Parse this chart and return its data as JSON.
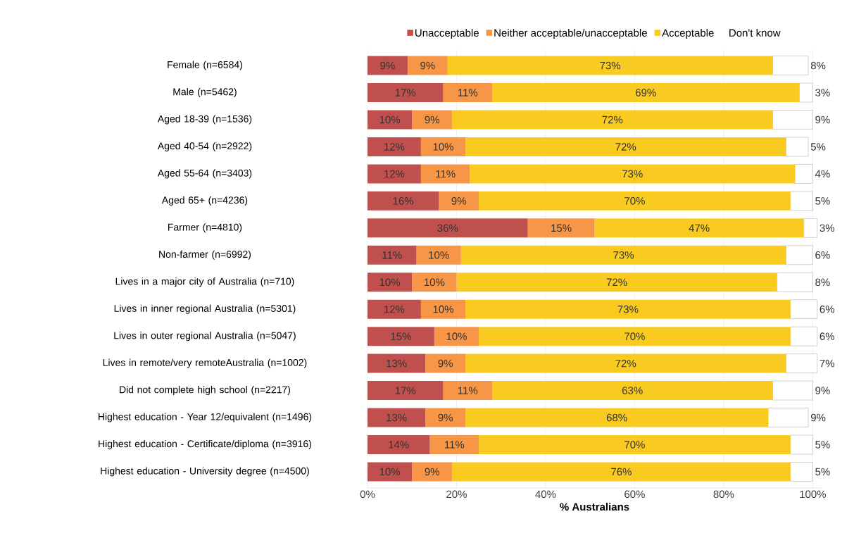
{
  "chart_data": {
    "type": "bar",
    "orientation": "horizontal",
    "stacked": true,
    "xlabel": "% Australians",
    "categories": [
      "Female (n=6584)",
      "Male (n=5462)",
      "Aged 18-39 (n=1536)",
      "Aged 40-54 (n=2922)",
      "Aged 55-64 (n=3403)",
      "Aged 65+ (n=4236)",
      "Farmer (n=4810)",
      "Non-farmer (n=6992)",
      "Lives in a major city of Australia (n=710)",
      "Lives in inner regional Australia (n=5301)",
      "Lives in outer regional Australia (n=5047)",
      "Lives in remote/very remoteAustralia (n=1002)",
      "Did not complete high school (n=2217)",
      "Highest education - Year 12/equivalent (n=1496)",
      "Highest education - Certificate/diploma (n=3916)",
      "Highest education - University degree (n=4500)"
    ],
    "series": [
      {
        "name": "Unacceptable",
        "color": "#c0504d",
        "values": [
          9,
          17,
          10,
          12,
          12,
          16,
          36,
          11,
          10,
          12,
          15,
          13,
          17,
          13,
          14,
          10
        ],
        "value_labels": [
          "9%",
          "17%",
          "10%",
          "12%",
          "12%",
          "16%",
          "36%",
          "11%",
          "10%",
          "12%",
          "15%",
          "13%",
          "17%",
          "13%",
          "14%",
          "10%"
        ]
      },
      {
        "name": "Neither acceptable/unacceptable",
        "color": "#f79646",
        "values": [
          9,
          11,
          9,
          10,
          11,
          9,
          15,
          10,
          10,
          10,
          10,
          9,
          11,
          9,
          11,
          9
        ],
        "value_labels": [
          "9%",
          "11%",
          "9%",
          "10%",
          "11%",
          "9%",
          "15%",
          "10%",
          "10%",
          "10%",
          "10%",
          "9%",
          "11%",
          "9%",
          "11%",
          "9%"
        ]
      },
      {
        "name": "Acceptable",
        "color": "#f9cb20",
        "values": [
          73,
          69,
          72,
          72,
          73,
          70,
          47,
          73,
          72,
          73,
          70,
          72,
          63,
          68,
          70,
          76
        ],
        "value_labels": [
          "73%",
          "69%",
          "72%",
          "72%",
          "73%",
          "70%",
          "47%",
          "73%",
          "72%",
          "73%",
          "70%",
          "72%",
          "63%",
          "68%",
          "70%",
          "76%"
        ]
      },
      {
        "name": "Don't know",
        "color": "#ffffff",
        "values": [
          8,
          3,
          9,
          5,
          4,
          5,
          3,
          6,
          8,
          6,
          6,
          7,
          9,
          9,
          5,
          5
        ],
        "value_labels": [
          "8%",
          "3%",
          "9%",
          "5%",
          "4%",
          "5%",
          "3%",
          "6%",
          "8%",
          "6%",
          "6%",
          "7%",
          "9%",
          "9%",
          "5%",
          "5%"
        ]
      }
    ],
    "xlim": [
      0,
      102
    ],
    "xticks": [
      {
        "value": 0,
        "label": "0%"
      },
      {
        "value": 20,
        "label": "20%"
      },
      {
        "value": 40,
        "label": "40%"
      },
      {
        "value": 60,
        "label": "60%"
      },
      {
        "value": 80,
        "label": "80%"
      },
      {
        "value": 100,
        "label": "100%"
      }
    ],
    "grid": "x",
    "legend": "top"
  }
}
